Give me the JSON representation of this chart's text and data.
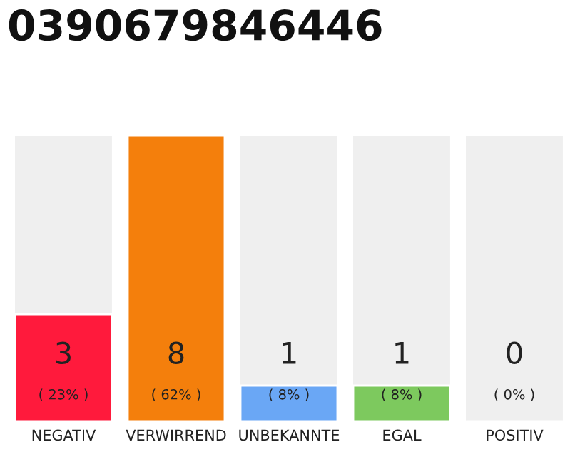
{
  "chart_data": {
    "type": "bar",
    "title": "0390679846446",
    "categories": [
      "NEGATIV",
      "VERWIRREND",
      "UNBEKANNTE",
      "EGAL",
      "POSITIV"
    ],
    "values": [
      3,
      8,
      1,
      1,
      0
    ],
    "colors": [
      "#ff1a3c",
      "#f47f0c",
      "#6aa7f5",
      "#7dc95e",
      null
    ],
    "value_labels": [
      "3\n( 23% )",
      "8\n( 62% )",
      "1\n( 8% )",
      "1\n( 8% )",
      "0\n( 0% )"
    ],
    "ylim": [
      0,
      8
    ],
    "tick_labels": "x",
    "grid": false,
    "legend": false
  }
}
